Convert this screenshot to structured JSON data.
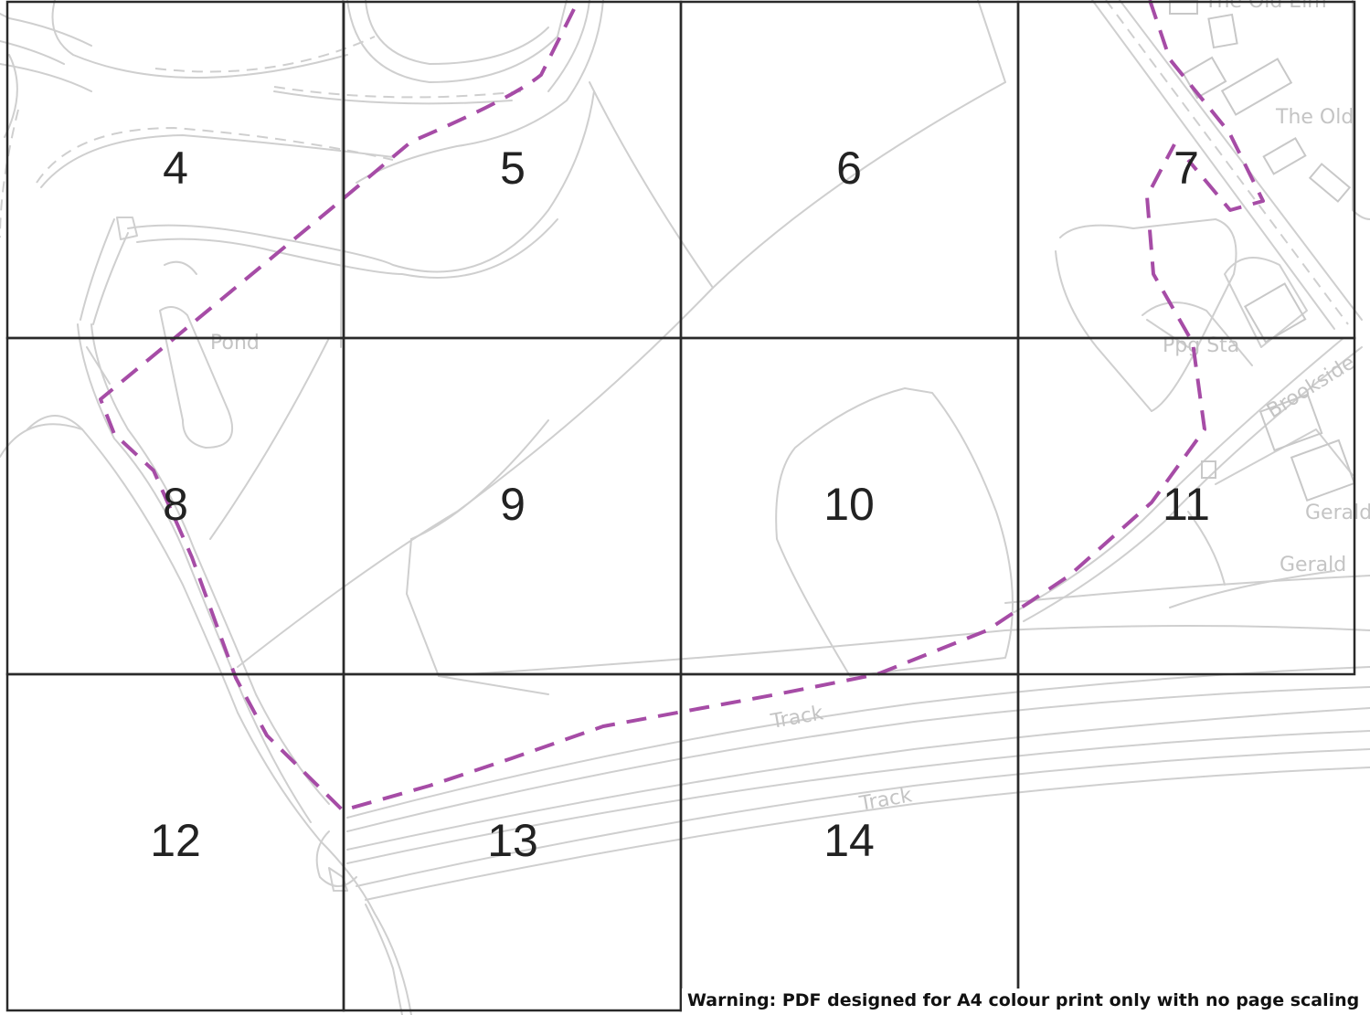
{
  "map": {
    "place_labels": [
      {
        "id": "old-elm",
        "text": "The Old Elm"
      },
      {
        "id": "the-old",
        "text": "The Old"
      },
      {
        "id": "pond",
        "text": "Pond"
      },
      {
        "id": "pmg-sta",
        "text": "Ppg Sta"
      },
      {
        "id": "brookside",
        "text": "Brookside"
      },
      {
        "id": "gerald-1",
        "text": "Gerald"
      },
      {
        "id": "gerald-2",
        "text": "Gerald"
      },
      {
        "id": "track-1",
        "text": "Track"
      },
      {
        "id": "track-2",
        "text": "Track"
      }
    ],
    "tiles": [
      "4",
      "5",
      "6",
      "7",
      "8",
      "9",
      "10",
      "11",
      "12",
      "13",
      "14"
    ],
    "boundary_color": "#a64ca6",
    "warning": "Warning: PDF designed for A4 colour print only with no page scaling"
  }
}
